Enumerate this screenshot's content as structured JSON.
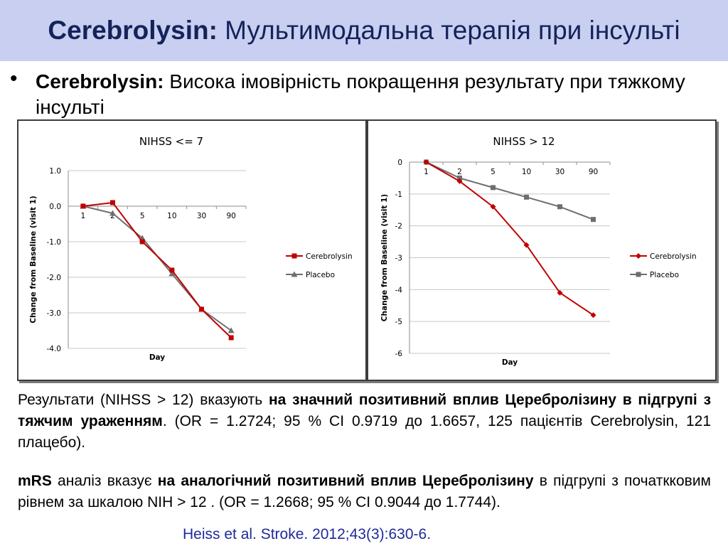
{
  "header": {
    "title_bold": "Cerebrolysin:",
    "title_rest": " Мультимодальна терапія при інсульті"
  },
  "bullet": {
    "bold": "Cerebrolysin:",
    "text": " Висока імовірність покращення результату при тяжкому інсульті"
  },
  "colors": {
    "cerebrolysin": "#c00000",
    "placebo": "#6e6e6e",
    "header_bg": "#c9cff0",
    "title": "#14235a",
    "citation": "#1f2a9a"
  },
  "chart_data": [
    {
      "type": "line",
      "title": "NIHSS <= 7",
      "xlabel": "Day",
      "ylabel": "Change from Baseline (visit 1)",
      "categories": [
        "1",
        "2",
        "5",
        "10",
        "30",
        "90"
      ],
      "ylim": [
        -4.0,
        1.0
      ],
      "yticks": [
        "1.0",
        "0.0",
        "-1.0",
        "-2.0",
        "-3.0",
        "-4.0"
      ],
      "grid": true,
      "legend": "right",
      "series": [
        {
          "name": "Cerebrolysin",
          "values": [
            0.0,
            0.1,
            -1.0,
            -1.8,
            -2.9,
            -3.7
          ],
          "marker": "square"
        },
        {
          "name": "Placebo",
          "values": [
            0.0,
            -0.2,
            -0.9,
            -1.9,
            -2.9,
            -3.5
          ],
          "marker": "triangle"
        }
      ]
    },
    {
      "type": "line",
      "title": "NIHSS > 12",
      "xlabel": "Day",
      "ylabel": "Change from Baseline (visit 1)",
      "categories": [
        "1",
        "2",
        "5",
        "10",
        "30",
        "90"
      ],
      "ylim": [
        -6,
        0
      ],
      "yticks": [
        "0",
        "-1",
        "-2",
        "-3",
        "-4",
        "-5",
        "-6"
      ],
      "grid": true,
      "legend": "right",
      "series": [
        {
          "name": "Cerebrolysin",
          "values": [
            0,
            -0.6,
            -1.4,
            -2.6,
            -4.1,
            -4.8
          ],
          "marker": "diamond"
        },
        {
          "name": "Placebo",
          "values": [
            0,
            -0.5,
            -0.8,
            -1.1,
            -1.4,
            -1.8
          ],
          "marker": "square"
        }
      ]
    }
  ],
  "paragraph1": {
    "t1": "Результати (NIHSS > 12) вказують ",
    "b1": "на значний позитивний вплив Церебролізину в підгрупі з тяжчим ураженням",
    "t2": ". (OR = 1.2724; 95 % CI 0.9719 до 1.6657, 125 пацієнтів Cerebrolysin, 121 плацебо)."
  },
  "paragraph2": {
    "b1": "mRS",
    "t1": " аналіз вказує ",
    "b2": "на аналогічний позитивний вплив Церебролізину",
    "t2": " в підгрупі з початкковим рівнем за шкалою NIH > 12 . (OR = 1.2668; 95 % CI 0.9044 до 1.7744)."
  },
  "citation": "Heiss et al. Stroke. 2012;43(3):630-6."
}
